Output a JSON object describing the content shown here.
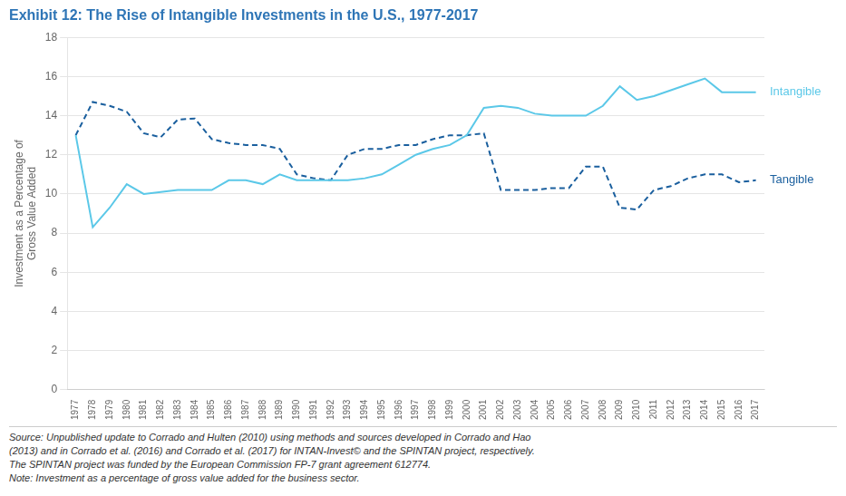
{
  "chart_data": {
    "type": "line",
    "title": "Exhibit 12: The Rise of Intangible Investments in the U.S., 1977-2017",
    "ylabel": "Investment as a Percentage of\nGross Value Added",
    "x": [
      1977,
      1978,
      1979,
      1980,
      1981,
      1982,
      1983,
      1984,
      1985,
      1986,
      1987,
      1988,
      1989,
      1990,
      1991,
      1992,
      1993,
      1994,
      1995,
      1996,
      1997,
      1998,
      1999,
      2000,
      2001,
      2002,
      2003,
      2004,
      2005,
      2006,
      2007,
      2008,
      2009,
      2010,
      2011,
      2012,
      2013,
      2014,
      2015,
      2016,
      2017
    ],
    "series": [
      {
        "name": "Intangible",
        "color": "#5BC8E8",
        "line_style": "solid",
        "values": [
          13.0,
          8.3,
          9.3,
          10.5,
          10.0,
          10.1,
          10.2,
          10.2,
          10.2,
          10.7,
          10.7,
          10.5,
          11.0,
          10.7,
          10.7,
          10.7,
          10.7,
          10.8,
          11.0,
          11.5,
          12.0,
          12.3,
          12.5,
          13.0,
          14.4,
          14.5,
          14.4,
          14.1,
          14.0,
          14.0,
          14.0,
          14.5,
          15.5,
          14.8,
          15.0,
          15.3,
          15.6,
          15.9,
          15.2,
          15.2,
          15.2
        ]
      },
      {
        "name": "Tangible",
        "color": "#1A5F9E",
        "line_style": "dashed",
        "values": [
          13.0,
          14.7,
          14.5,
          14.2,
          13.1,
          12.9,
          13.8,
          13.85,
          12.8,
          12.6,
          12.5,
          12.5,
          12.3,
          11.0,
          10.8,
          10.7,
          12.0,
          12.3,
          12.3,
          12.5,
          12.5,
          12.8,
          13.0,
          13.0,
          13.1,
          10.2,
          10.2,
          10.2,
          10.3,
          10.3,
          11.4,
          11.4,
          9.3,
          9.2,
          10.2,
          10.4,
          10.8,
          11.0,
          11.0,
          10.6,
          10.7
        ]
      }
    ],
    "xlim": [
      1976.5,
      2017.5
    ],
    "xticks": [
      1977,
      1978,
      1979,
      1980,
      1981,
      1982,
      1983,
      1984,
      1985,
      1986,
      1987,
      1988,
      1989,
      1990,
      1991,
      1992,
      1993,
      1994,
      1995,
      1996,
      1997,
      1998,
      1999,
      2000,
      2001,
      2002,
      2003,
      2004,
      2005,
      2006,
      2007,
      2008,
      2009,
      2010,
      2011,
      2012,
      2013,
      2014,
      2015,
      2016,
      2017
    ],
    "ylim": [
      0,
      18
    ],
    "yticks": [
      0,
      2,
      4,
      6,
      8,
      10,
      12,
      14,
      16,
      18
    ],
    "grid": true,
    "title_color": "#2E75B6",
    "annotations": [
      "Source: Unpublished update to Corrado and Hulten (2010) using methods and sources developed in Corrado and Hao\n(2013) and in Corrado et al. (2016) and Corrado et al. (2017) for INTAN-Invest© and the SPINTAN project, respectively.\nThe SPINTAN project was funded by the European Commission FP-7 grant agreement 612774.\nNote: Investment as a percentage of gross value added for the business sector."
    ]
  }
}
